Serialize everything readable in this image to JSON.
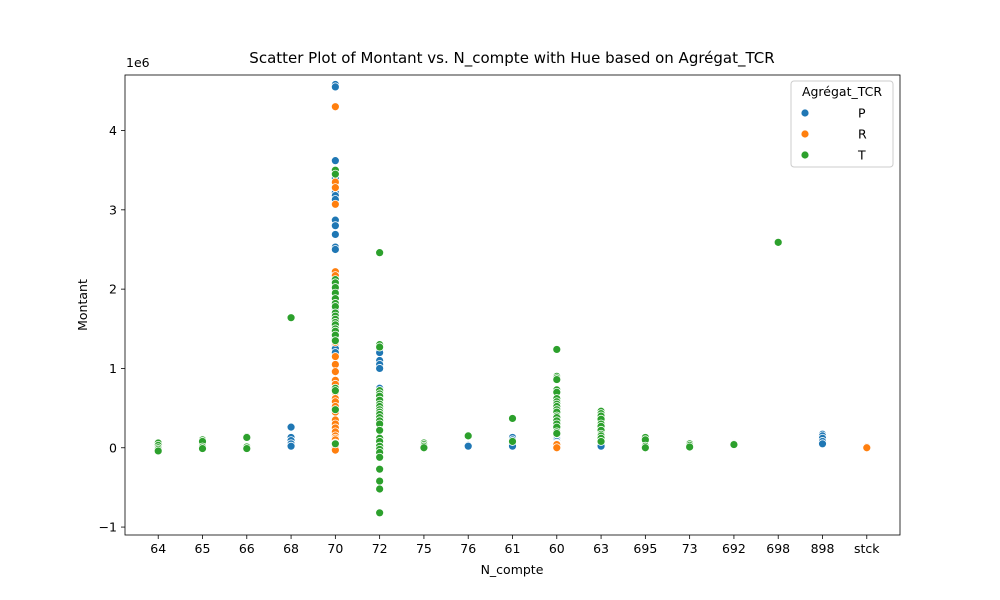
{
  "chart_data": {
    "type": "scatter",
    "title": "Scatter Plot of Montant vs. N_compte with Hue based on Agrégat_TCR",
    "xlabel": "N_compte",
    "ylabel": "Montant",
    "y_scale_label": "1e6",
    "categories": [
      "64",
      "65",
      "66",
      "68",
      "70",
      "72",
      "75",
      "76",
      "61",
      "60",
      "63",
      "695",
      "73",
      "692",
      "698",
      "898",
      "stck"
    ],
    "ylim": [
      -1.1,
      4.7
    ],
    "yticks": [
      -1,
      0,
      1,
      2,
      3,
      4
    ],
    "ytick_labels": [
      "−1",
      "0",
      "1",
      "2",
      "3",
      "4"
    ],
    "legend": {
      "title": "Agrégat_TCR",
      "position": "top-right",
      "entries": [
        "P",
        "R",
        "T"
      ]
    },
    "colors": {
      "P": "#1f77b4",
      "R": "#ff7f0e",
      "T": "#2ca02c"
    },
    "series": [
      {
        "name": "P",
        "points": [
          {
            "x": "68",
            "y": 0.26
          },
          {
            "x": "68",
            "y": 0.13
          },
          {
            "x": "68",
            "y": 0.09
          },
          {
            "x": "68",
            "y": 0.05
          },
          {
            "x": "68",
            "y": 0.02
          },
          {
            "x": "70",
            "y": 4.58
          },
          {
            "x": "70",
            "y": 4.55
          },
          {
            "x": "70",
            "y": 3.62
          },
          {
            "x": "70",
            "y": 3.45
          },
          {
            "x": "70",
            "y": 3.4
          },
          {
            "x": "70",
            "y": 3.22
          },
          {
            "x": "70",
            "y": 3.18
          },
          {
            "x": "70",
            "y": 3.13
          },
          {
            "x": "70",
            "y": 2.87
          },
          {
            "x": "70",
            "y": 2.8
          },
          {
            "x": "70",
            "y": 2.69
          },
          {
            "x": "70",
            "y": 2.53
          },
          {
            "x": "70",
            "y": 2.5
          },
          {
            "x": "70",
            "y": 1.9
          },
          {
            "x": "70",
            "y": 1.85
          },
          {
            "x": "70",
            "y": 1.75
          },
          {
            "x": "70",
            "y": 1.6
          },
          {
            "x": "70",
            "y": 1.45
          },
          {
            "x": "70",
            "y": 1.38
          },
          {
            "x": "70",
            "y": 1.3
          },
          {
            "x": "70",
            "y": 1.25
          },
          {
            "x": "70",
            "y": 1.2
          },
          {
            "x": "72",
            "y": 1.25
          },
          {
            "x": "72",
            "y": 1.2
          },
          {
            "x": "72",
            "y": 1.1
          },
          {
            "x": "72",
            "y": 1.05
          },
          {
            "x": "72",
            "y": 1.0
          },
          {
            "x": "72",
            "y": 0.75
          },
          {
            "x": "72",
            "y": 0.72
          },
          {
            "x": "72",
            "y": 0.7
          },
          {
            "x": "76",
            "y": 0.03
          },
          {
            "x": "76",
            "y": 0.02
          },
          {
            "x": "61",
            "y": 0.13
          },
          {
            "x": "61",
            "y": 0.1
          },
          {
            "x": "61",
            "y": 0.07
          },
          {
            "x": "61",
            "y": 0.02
          },
          {
            "x": "60",
            "y": 0.17
          },
          {
            "x": "60",
            "y": 0.15
          },
          {
            "x": "60",
            "y": 0.12
          },
          {
            "x": "60",
            "y": 0.1
          },
          {
            "x": "60",
            "y": 0.08
          },
          {
            "x": "60",
            "y": 0.06
          },
          {
            "x": "60",
            "y": 0.05
          },
          {
            "x": "60",
            "y": 0.04
          },
          {
            "x": "63",
            "y": 0.02
          },
          {
            "x": "898",
            "y": 0.17
          },
          {
            "x": "898",
            "y": 0.15
          },
          {
            "x": "898",
            "y": 0.12
          },
          {
            "x": "898",
            "y": 0.08
          },
          {
            "x": "898",
            "y": 0.05
          }
        ]
      },
      {
        "name": "R",
        "points": [
          {
            "x": "70",
            "y": 4.3
          },
          {
            "x": "70",
            "y": 3.35
          },
          {
            "x": "70",
            "y": 3.28
          },
          {
            "x": "70",
            "y": 3.07
          },
          {
            "x": "70",
            "y": 2.22
          },
          {
            "x": "70",
            "y": 2.17
          },
          {
            "x": "70",
            "y": 1.33
          },
          {
            "x": "70",
            "y": 1.15
          },
          {
            "x": "70",
            "y": 1.05
          },
          {
            "x": "70",
            "y": 0.96
          },
          {
            "x": "70",
            "y": 0.85
          },
          {
            "x": "70",
            "y": 0.8
          },
          {
            "x": "70",
            "y": 0.75
          },
          {
            "x": "70",
            "y": 0.7
          },
          {
            "x": "70",
            "y": 0.62
          },
          {
            "x": "70",
            "y": 0.58
          },
          {
            "x": "70",
            "y": 0.52
          },
          {
            "x": "70",
            "y": 0.45
          },
          {
            "x": "70",
            "y": 0.35
          },
          {
            "x": "70",
            "y": 0.3
          },
          {
            "x": "70",
            "y": 0.25
          },
          {
            "x": "70",
            "y": 0.2
          },
          {
            "x": "70",
            "y": 0.15
          },
          {
            "x": "70",
            "y": 0.12
          },
          {
            "x": "70",
            "y": 0.1
          },
          {
            "x": "70",
            "y": 0.06
          },
          {
            "x": "70",
            "y": 0.03
          },
          {
            "x": "70",
            "y": 0.0
          },
          {
            "x": "70",
            "y": -0.03
          },
          {
            "x": "60",
            "y": 0.25
          },
          {
            "x": "60",
            "y": 0.22
          },
          {
            "x": "60",
            "y": 0.04
          },
          {
            "x": "60",
            "y": 0.0
          },
          {
            "x": "stck",
            "y": 0.01
          },
          {
            "x": "stck",
            "y": 0.0
          }
        ]
      },
      {
        "name": "T",
        "points": [
          {
            "x": "64",
            "y": 0.06
          },
          {
            "x": "64",
            "y": 0.03
          },
          {
            "x": "64",
            "y": 0.0
          },
          {
            "x": "64",
            "y": -0.02
          },
          {
            "x": "64",
            "y": -0.04
          },
          {
            "x": "65",
            "y": 0.1
          },
          {
            "x": "65",
            "y": 0.08
          },
          {
            "x": "65",
            "y": 0.01
          },
          {
            "x": "65",
            "y": -0.01
          },
          {
            "x": "66",
            "y": 0.14
          },
          {
            "x": "66",
            "y": 0.13
          },
          {
            "x": "66",
            "y": 0.01
          },
          {
            "x": "66",
            "y": -0.01
          },
          {
            "x": "68",
            "y": 1.64
          },
          {
            "x": "70",
            "y": 3.5
          },
          {
            "x": "70",
            "y": 3.45
          },
          {
            "x": "70",
            "y": 2.12
          },
          {
            "x": "70",
            "y": 2.08
          },
          {
            "x": "70",
            "y": 2.02
          },
          {
            "x": "70",
            "y": 1.95
          },
          {
            "x": "70",
            "y": 1.88
          },
          {
            "x": "70",
            "y": 1.82
          },
          {
            "x": "70",
            "y": 1.78
          },
          {
            "x": "70",
            "y": 1.7
          },
          {
            "x": "70",
            "y": 1.66
          },
          {
            "x": "70",
            "y": 1.62
          },
          {
            "x": "70",
            "y": 1.58
          },
          {
            "x": "70",
            "y": 1.55
          },
          {
            "x": "70",
            "y": 1.5
          },
          {
            "x": "70",
            "y": 1.47
          },
          {
            "x": "70",
            "y": 1.42
          },
          {
            "x": "70",
            "y": 1.35
          },
          {
            "x": "70",
            "y": 0.75
          },
          {
            "x": "70",
            "y": 0.72
          },
          {
            "x": "70",
            "y": 0.48
          },
          {
            "x": "70",
            "y": 0.05
          },
          {
            "x": "72",
            "y": 2.46
          },
          {
            "x": "72",
            "y": 1.3
          },
          {
            "x": "72",
            "y": 1.27
          },
          {
            "x": "72",
            "y": 0.72
          },
          {
            "x": "72",
            "y": 0.68
          },
          {
            "x": "72",
            "y": 0.65
          },
          {
            "x": "72",
            "y": 0.6
          },
          {
            "x": "72",
            "y": 0.55
          },
          {
            "x": "72",
            "y": 0.52
          },
          {
            "x": "72",
            "y": 0.48
          },
          {
            "x": "72",
            "y": 0.45
          },
          {
            "x": "72",
            "y": 0.42
          },
          {
            "x": "72",
            "y": 0.38
          },
          {
            "x": "72",
            "y": 0.34
          },
          {
            "x": "72",
            "y": 0.3
          },
          {
            "x": "72",
            "y": 0.22
          },
          {
            "x": "72",
            "y": 0.12
          },
          {
            "x": "72",
            "y": 0.08
          },
          {
            "x": "72",
            "y": 0.02
          },
          {
            "x": "72",
            "y": -0.02
          },
          {
            "x": "72",
            "y": -0.06
          },
          {
            "x": "72",
            "y": -0.12
          },
          {
            "x": "72",
            "y": -0.27
          },
          {
            "x": "72",
            "y": -0.42
          },
          {
            "x": "72",
            "y": -0.52
          },
          {
            "x": "72",
            "y": -0.82
          },
          {
            "x": "75",
            "y": 0.06
          },
          {
            "x": "75",
            "y": 0.04
          },
          {
            "x": "75",
            "y": 0.02
          },
          {
            "x": "75",
            "y": 0.0
          },
          {
            "x": "76",
            "y": 0.15
          },
          {
            "x": "61",
            "y": 0.37
          },
          {
            "x": "61",
            "y": 0.08
          },
          {
            "x": "60",
            "y": 1.24
          },
          {
            "x": "60",
            "y": 0.9
          },
          {
            "x": "60",
            "y": 0.88
          },
          {
            "x": "60",
            "y": 0.86
          },
          {
            "x": "60",
            "y": 0.73
          },
          {
            "x": "60",
            "y": 0.7
          },
          {
            "x": "60",
            "y": 0.62
          },
          {
            "x": "60",
            "y": 0.58
          },
          {
            "x": "60",
            "y": 0.55
          },
          {
            "x": "60",
            "y": 0.52
          },
          {
            "x": "60",
            "y": 0.48
          },
          {
            "x": "60",
            "y": 0.45
          },
          {
            "x": "60",
            "y": 0.4
          },
          {
            "x": "60",
            "y": 0.38
          },
          {
            "x": "60",
            "y": 0.34
          },
          {
            "x": "60",
            "y": 0.3
          },
          {
            "x": "60",
            "y": 0.26
          },
          {
            "x": "60",
            "y": 0.2
          },
          {
            "x": "60",
            "y": 0.18
          },
          {
            "x": "63",
            "y": 0.46
          },
          {
            "x": "63",
            "y": 0.43
          },
          {
            "x": "63",
            "y": 0.4
          },
          {
            "x": "63",
            "y": 0.36
          },
          {
            "x": "63",
            "y": 0.3
          },
          {
            "x": "63",
            "y": 0.27
          },
          {
            "x": "63",
            "y": 0.22
          },
          {
            "x": "63",
            "y": 0.17
          },
          {
            "x": "63",
            "y": 0.15
          },
          {
            "x": "63",
            "y": 0.12
          },
          {
            "x": "63",
            "y": 0.08
          },
          {
            "x": "695",
            "y": 0.13
          },
          {
            "x": "695",
            "y": 0.1
          },
          {
            "x": "695",
            "y": 0.02
          },
          {
            "x": "695",
            "y": 0.0
          },
          {
            "x": "73",
            "y": 0.05
          },
          {
            "x": "73",
            "y": 0.03
          },
          {
            "x": "73",
            "y": 0.01
          },
          {
            "x": "692",
            "y": 0.05
          },
          {
            "x": "692",
            "y": 0.04
          },
          {
            "x": "698",
            "y": 2.59
          }
        ]
      }
    ]
  }
}
